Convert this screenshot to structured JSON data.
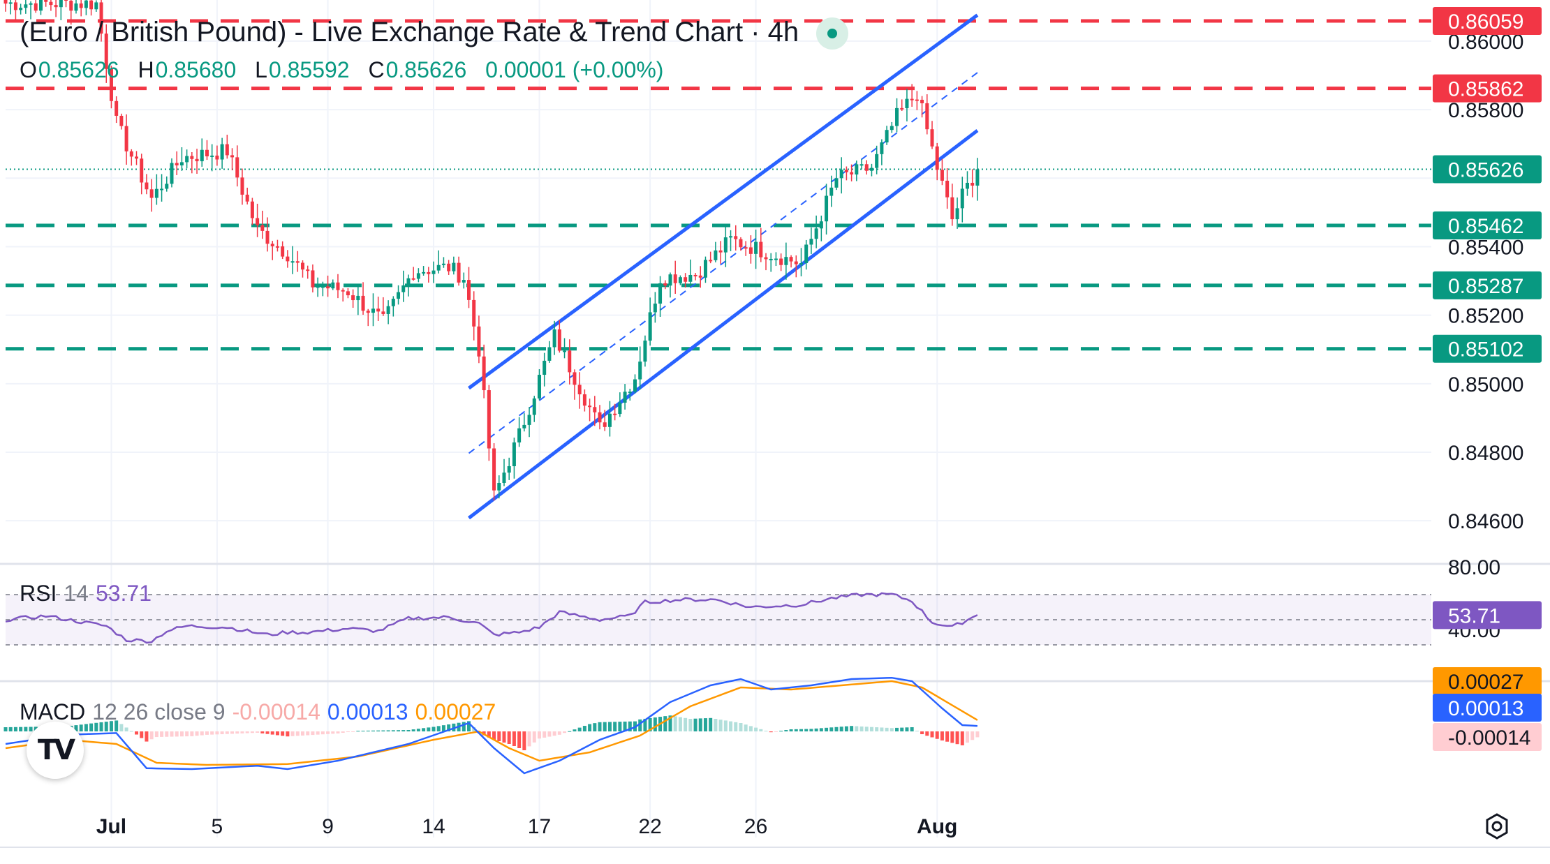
{
  "header": {
    "title": "(Euro / British Pound) - Live Exchange Rate & Trend Chart · 4h",
    "ohlc": [
      {
        "key": "O",
        "value": "0.85626"
      },
      {
        "key": "H",
        "value": "0.85680"
      },
      {
        "key": "L",
        "value": "0.85592"
      },
      {
        "key": "C",
        "value": "0.85626"
      }
    ],
    "change": "0.00001 (+0.00%)"
  },
  "indicators": {
    "rsi": {
      "label": "RSI",
      "period": "14",
      "value": "53.71",
      "badge": "53.71",
      "axis": [
        "80.00",
        "40.00"
      ]
    },
    "macd": {
      "label": "MACD",
      "params": "12 26 close 9",
      "hist": "-0.00014",
      "macd": "0.00013",
      "signal": "0.00027",
      "badges": [
        "0.00027",
        "0.00013",
        "-0.00014"
      ]
    }
  },
  "logo": {
    "text": "TV"
  },
  "icons": {
    "settings": "gear-icon",
    "logo": "tradingview-logo-icon"
  },
  "colors": {
    "up": "#089981",
    "down": "#f23645",
    "channel": "#2962ff",
    "rsi": "#7e57c2",
    "macd": "#2962ff",
    "signal": "#ff9800"
  },
  "chart_data": {
    "type": "candlestick",
    "symbol": "EUR/GBP",
    "timeframe": "4h",
    "x_tick_labels": [
      "Jul",
      "5",
      "9",
      "14",
      "17",
      "22",
      "26",
      "Aug"
    ],
    "y_tick_labels": [
      "0.86000",
      "0.85800",
      "0.85400",
      "0.85200",
      "0.85000",
      "0.84800",
      "0.84600"
    ],
    "ylim": [
      0.8447,
      0.8612
    ],
    "last_price": "0.85626",
    "resistance_levels": [
      {
        "label": "0.86059",
        "value": 0.86059
      },
      {
        "label": "0.85862",
        "value": 0.85862
      }
    ],
    "support_levels": [
      {
        "label": "0.85462",
        "value": 0.85462
      },
      {
        "label": "0.85287",
        "value": 0.85287
      },
      {
        "label": "0.85102",
        "value": 0.85102
      }
    ],
    "channel": {
      "upper": [
        {
          "bar": 92,
          "price": 0.84987
        },
        {
          "bar": 193,
          "price": 0.86076
        }
      ],
      "lower": [
        {
          "bar": 92,
          "price": 0.84608
        },
        {
          "bar": 193,
          "price": 0.85739
        }
      ],
      "mid": [
        {
          "bar": 92,
          "price": 0.84797
        },
        {
          "bar": 193,
          "price": 0.85908
        }
      ]
    },
    "key_closes": [
      {
        "bar": 0,
        "close": 0.8611
      },
      {
        "bar": 18,
        "close": 0.8611
      },
      {
        "bar": 22,
        "close": 0.8576
      },
      {
        "bar": 29,
        "close": 0.8554
      },
      {
        "bar": 35,
        "close": 0.8566
      },
      {
        "bar": 44,
        "close": 0.8568
      },
      {
        "bar": 50,
        "close": 0.8545
      },
      {
        "bar": 56,
        "close": 0.8538
      },
      {
        "bar": 61,
        "close": 0.8529
      },
      {
        "bar": 68,
        "close": 0.8527
      },
      {
        "bar": 75,
        "close": 0.8518
      },
      {
        "bar": 81,
        "close": 0.8533
      },
      {
        "bar": 88,
        "close": 0.8534
      },
      {
        "bar": 91,
        "close": 0.8531
      },
      {
        "bar": 94,
        "close": 0.851
      },
      {
        "bar": 97,
        "close": 0.8467
      },
      {
        "bar": 102,
        "close": 0.8485
      },
      {
        "bar": 109,
        "close": 0.8514
      },
      {
        "bar": 118,
        "close": 0.8487
      },
      {
        "bar": 125,
        "close": 0.8502
      },
      {
        "bar": 130,
        "close": 0.8531
      },
      {
        "bar": 137,
        "close": 0.8532
      },
      {
        "bar": 144,
        "close": 0.8542
      },
      {
        "bar": 150,
        "close": 0.8539
      },
      {
        "bar": 158,
        "close": 0.8535
      },
      {
        "bar": 165,
        "close": 0.856
      },
      {
        "bar": 172,
        "close": 0.8563
      },
      {
        "bar": 177,
        "close": 0.8578
      },
      {
        "bar": 181,
        "close": 0.8585
      },
      {
        "bar": 185,
        "close": 0.8563
      },
      {
        "bar": 188,
        "close": 0.8548
      },
      {
        "bar": 190,
        "close": 0.8555
      },
      {
        "bar": 193,
        "close": 0.85626
      }
    ],
    "rsi_key": [
      {
        "bar": 0,
        "v": 50
      },
      {
        "bar": 8,
        "v": 53
      },
      {
        "bar": 20,
        "v": 45
      },
      {
        "bar": 24,
        "v": 34
      },
      {
        "bar": 29,
        "v": 33
      },
      {
        "bar": 32,
        "v": 41
      },
      {
        "bar": 36,
        "v": 45
      },
      {
        "bar": 44,
        "v": 44
      },
      {
        "bar": 52,
        "v": 38
      },
      {
        "bar": 56,
        "v": 40
      },
      {
        "bar": 60,
        "v": 40
      },
      {
        "bar": 68,
        "v": 43
      },
      {
        "bar": 74,
        "v": 41
      },
      {
        "bar": 80,
        "v": 51
      },
      {
        "bar": 88,
        "v": 52
      },
      {
        "bar": 94,
        "v": 47
      },
      {
        "bar": 97,
        "v": 38
      },
      {
        "bar": 102,
        "v": 40
      },
      {
        "bar": 106,
        "v": 44
      },
      {
        "bar": 110,
        "v": 56
      },
      {
        "bar": 118,
        "v": 50
      },
      {
        "bar": 124,
        "v": 53
      },
      {
        "bar": 127,
        "v": 64
      },
      {
        "bar": 134,
        "v": 66
      },
      {
        "bar": 141,
        "v": 66
      },
      {
        "bar": 148,
        "v": 60
      },
      {
        "bar": 158,
        "v": 62
      },
      {
        "bar": 164,
        "v": 67
      },
      {
        "bar": 170,
        "v": 70
      },
      {
        "bar": 176,
        "v": 70
      },
      {
        "bar": 180,
        "v": 65
      },
      {
        "bar": 184,
        "v": 48
      },
      {
        "bar": 188,
        "v": 44
      },
      {
        "bar": 191,
        "v": 50
      },
      {
        "bar": 193,
        "v": 53.71
      }
    ],
    "macd_key": [
      {
        "bar": 0,
        "v": -0.0003
      },
      {
        "bar": 12,
        "v": -8e-05
      },
      {
        "bar": 22,
        "v": -4e-05
      },
      {
        "bar": 28,
        "v": -0.00088
      },
      {
        "bar": 37,
        "v": -0.0009
      },
      {
        "bar": 50,
        "v": -0.00082
      },
      {
        "bar": 56,
        "v": -0.0009
      },
      {
        "bar": 66,
        "v": -0.0007
      },
      {
        "bar": 80,
        "v": -0.0003
      },
      {
        "bar": 92,
        "v": 0.0002
      },
      {
        "bar": 97,
        "v": -0.0004
      },
      {
        "bar": 103,
        "v": -0.001
      },
      {
        "bar": 110,
        "v": -0.0007
      },
      {
        "bar": 118,
        "v": -0.0002
      },
      {
        "bar": 125,
        "v": 0.0001
      },
      {
        "bar": 132,
        "v": 0.0007
      },
      {
        "bar": 140,
        "v": 0.0011
      },
      {
        "bar": 146,
        "v": 0.00125
      },
      {
        "bar": 152,
        "v": 0.001
      },
      {
        "bar": 160,
        "v": 0.0011
      },
      {
        "bar": 168,
        "v": 0.00125
      },
      {
        "bar": 176,
        "v": 0.00128
      },
      {
        "bar": 180,
        "v": 0.0012
      },
      {
        "bar": 186,
        "v": 0.00055
      },
      {
        "bar": 190,
        "v": 0.00015
      },
      {
        "bar": 193,
        "v": 0.00013
      }
    ],
    "signal_key": [
      {
        "bar": 0,
        "v": -0.0004
      },
      {
        "bar": 12,
        "v": -0.0002
      },
      {
        "bar": 22,
        "v": -0.0003
      },
      {
        "bar": 30,
        "v": -0.00075
      },
      {
        "bar": 40,
        "v": -0.0008
      },
      {
        "bar": 56,
        "v": -0.00078
      },
      {
        "bar": 70,
        "v": -0.0006
      },
      {
        "bar": 85,
        "v": -0.0002
      },
      {
        "bar": 94,
        "v": 0.0
      },
      {
        "bar": 100,
        "v": -0.0004
      },
      {
        "bar": 106,
        "v": -0.0007
      },
      {
        "bar": 116,
        "v": -0.0005
      },
      {
        "bar": 126,
        "v": -0.0001
      },
      {
        "bar": 136,
        "v": 0.0006
      },
      {
        "bar": 146,
        "v": 0.00105
      },
      {
        "bar": 156,
        "v": 0.001
      },
      {
        "bar": 166,
        "v": 0.0011
      },
      {
        "bar": 176,
        "v": 0.0012
      },
      {
        "bar": 182,
        "v": 0.00105
      },
      {
        "bar": 193,
        "v": 0.00027
      }
    ],
    "grid": true
  }
}
